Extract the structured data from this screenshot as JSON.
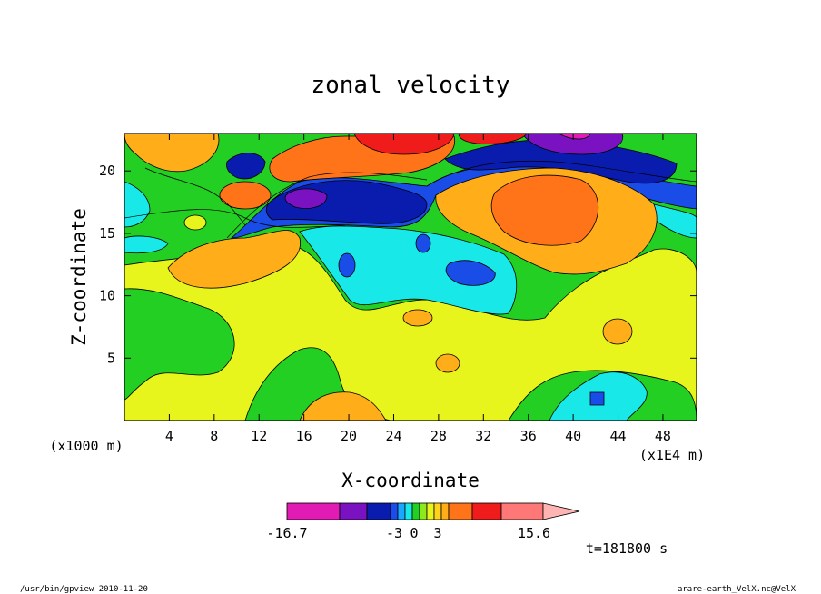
{
  "chart_data": {
    "type": "heatmap",
    "title": "zonal velocity",
    "xlabel": "X-coordinate",
    "ylabel": "Z-coordinate",
    "x_unit": "(x1E4 m)",
    "y_unit": "(x1000 m)",
    "xlim": [
      0,
      51
    ],
    "ylim": [
      0,
      23
    ],
    "x_ticks": [
      4,
      8,
      12,
      16,
      20,
      24,
      28,
      32,
      36,
      40,
      44,
      48
    ],
    "y_ticks": [
      5,
      10,
      15,
      20
    ],
    "colorbar": {
      "min_label": "-16.7",
      "max_label": "15.6",
      "mid_labels": [
        "-3",
        "0",
        "3"
      ],
      "colors": [
        "#e01cb4",
        "#7a12c2",
        "#0a1cae",
        "#1a4ce8",
        "#19a7ff",
        "#19e8e8",
        "#22cf22",
        "#8fe81c",
        "#e8f51c",
        "#ffd21c",
        "#ffad19",
        "#ff7419",
        "#f01c1c",
        "#ff7878",
        "#ffb4b4"
      ]
    },
    "field_regions": [
      {
        "level": "-3..-1",
        "x_center": 24,
        "z_center": 13.5
      },
      {
        "level": "-5..-3",
        "x_center": 33,
        "z_center": 12
      },
      {
        "level": "-10..-5",
        "x_center": 32,
        "z_center": 19.5
      },
      {
        "level": "-16.7..-10",
        "x_center": 40,
        "z_center": 22
      },
      {
        "level": "10..15.6",
        "x_center": 23,
        "z_center": 22
      },
      {
        "level": "5..10",
        "x_center": 39,
        "z_center": 17.5
      },
      {
        "level": "3..5",
        "x_center": 10,
        "z_center": 13
      }
    ]
  },
  "time_label": "t=181800 s",
  "footer_left": "/usr/bin/gpview   2010-11-20",
  "footer_right": "arare-earth_VelX.nc@VelX"
}
